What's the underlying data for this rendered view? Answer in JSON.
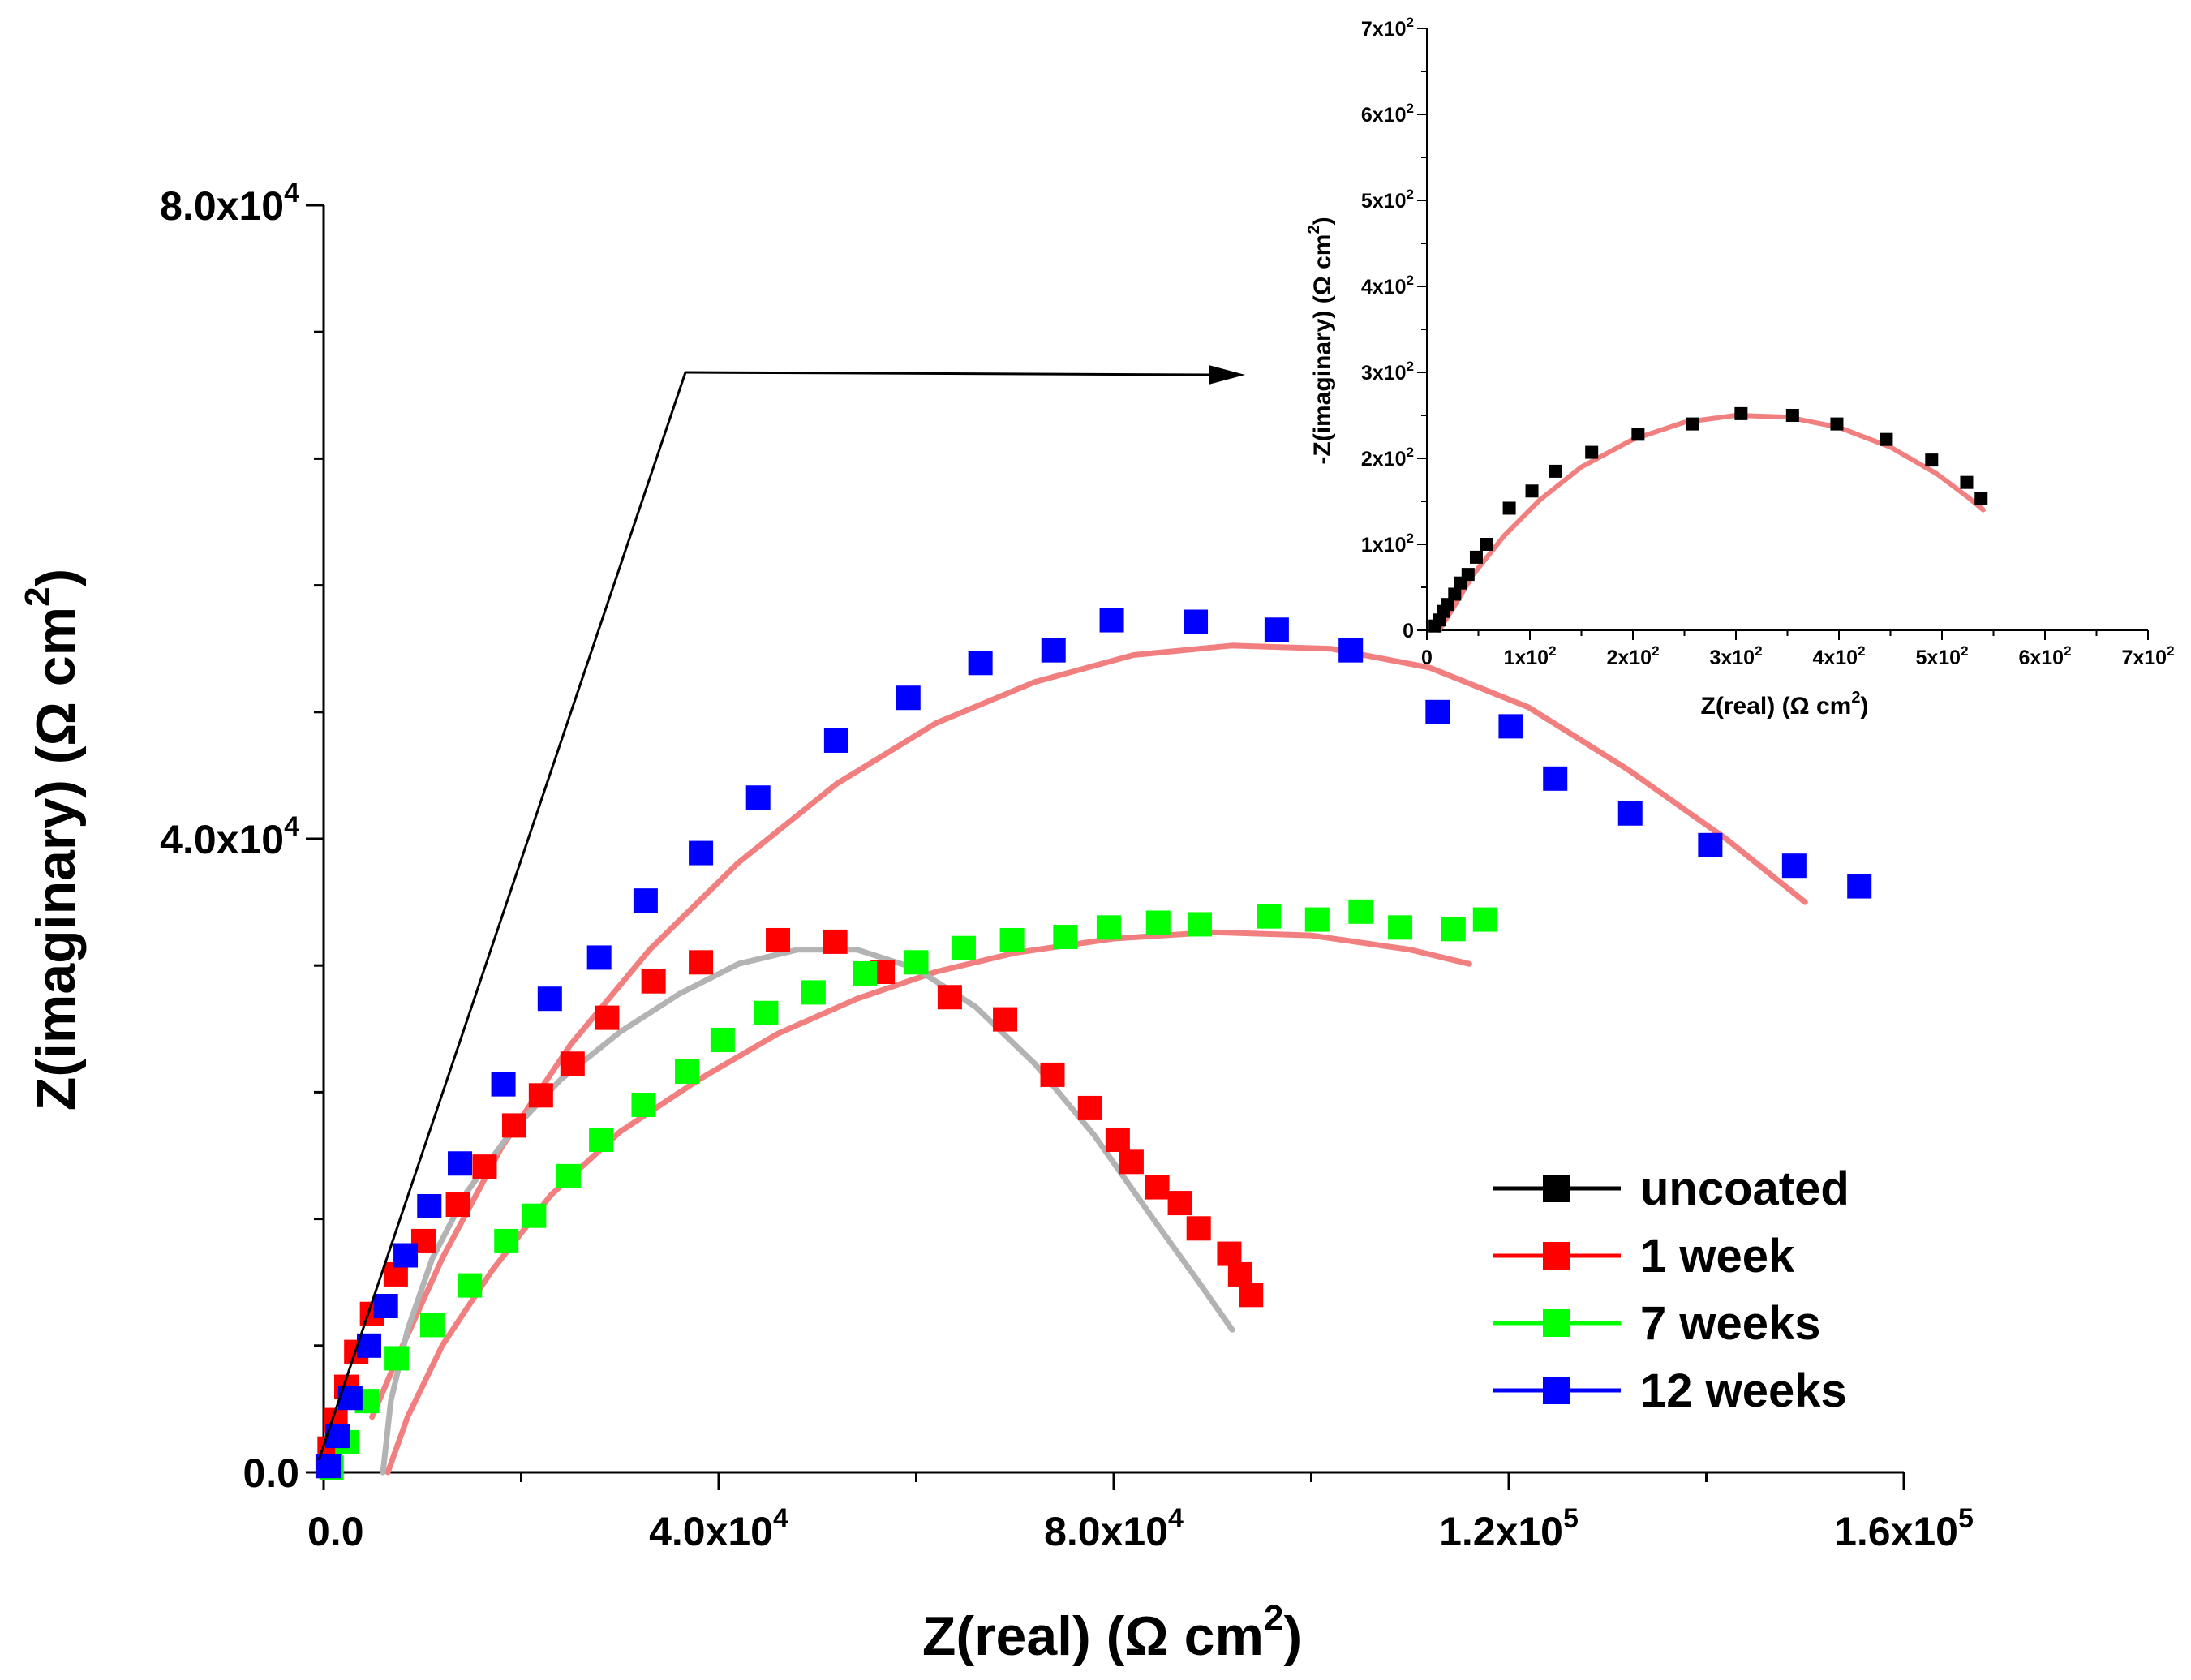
{
  "chart_data": [
    {
      "type": "scatter",
      "role": "main",
      "xlabel": "Z(real) (Ω cm²)",
      "ylabel": "Z(imaginary) (Ω cm²)",
      "xlim": [
        0,
        200000
      ],
      "ylim": [
        0,
        80000
      ],
      "x_ticks": [
        {
          "value": 0,
          "label": "0.0"
        },
        {
          "value": 40000,
          "label": "4.0x10",
          "exp": "4"
        },
        {
          "value": 80000,
          "label": "8.0x10",
          "exp": "4"
        },
        {
          "value": 120000,
          "label": "1.2x10",
          "exp": "5"
        },
        {
          "value": 160000,
          "label": "1.6x10",
          "exp": "5"
        }
      ],
      "y_ticks": [
        {
          "value": 0,
          "label": "0.0"
        },
        {
          "value": 40000,
          "label": "4.0x10",
          "exp": "4"
        },
        {
          "value": 80000,
          "label": "8.0x10",
          "exp": "4"
        }
      ],
      "legend_position": "bottom-right",
      "series": [
        {
          "name": "uncoated",
          "color": "#000000",
          "points": []
        },
        {
          "name": "1 week",
          "color": "#ff0000",
          "points": [
            [
              400,
              400
            ],
            [
              600,
              1500
            ],
            [
              1200,
              3300
            ],
            [
              2300,
              5400
            ],
            [
              3300,
              7600
            ],
            [
              4900,
              10000
            ],
            [
              7300,
              12500
            ],
            [
              10100,
              14600
            ],
            [
              13600,
              16900
            ],
            [
              16300,
              19300
            ],
            [
              19300,
              21900
            ],
            [
              22000,
              23800
            ],
            [
              25200,
              25800
            ],
            [
              28700,
              28700
            ],
            [
              33400,
              31000
            ],
            [
              38200,
              32200
            ],
            [
              46000,
              33600
            ],
            [
              51800,
              33500
            ],
            [
              56600,
              31600
            ],
            [
              63400,
              30000
            ],
            [
              69000,
              28600
            ],
            [
              73800,
              25100
            ],
            [
              77600,
              23000
            ],
            [
              80400,
              21000
            ],
            [
              81800,
              19600
            ],
            [
              84400,
              18000
            ],
            [
              86700,
              17000
            ],
            [
              88600,
              15400
            ],
            [
              91700,
              13800
            ],
            [
              92800,
              12500
            ],
            [
              93900,
              11200
            ]
          ]
        },
        {
          "name": "7 weeks",
          "color": "#00ff00",
          "points": [
            [
              800,
              300
            ],
            [
              2400,
              1900
            ],
            [
              4400,
              4500
            ],
            [
              7400,
              7200
            ],
            [
              11000,
              9300
            ],
            [
              14800,
              11800
            ],
            [
              18500,
              14600
            ],
            [
              21300,
              16200
            ],
            [
              24800,
              18700
            ],
            [
              28100,
              21000
            ],
            [
              32400,
              23200
            ],
            [
              36800,
              25300
            ],
            [
              40400,
              27300
            ],
            [
              44800,
              29000
            ],
            [
              49600,
              30300
            ],
            [
              54800,
              31500
            ],
            [
              60000,
              32200
            ],
            [
              64800,
              33100
            ],
            [
              69700,
              33600
            ],
            [
              75100,
              33800
            ],
            [
              79500,
              34400
            ],
            [
              84500,
              34700
            ],
            [
              88700,
              34600
            ],
            [
              95700,
              35100
            ],
            [
              100600,
              34900
            ],
            [
              105000,
              35400
            ],
            [
              109000,
              34400
            ],
            [
              114400,
              34300
            ],
            [
              117600,
              34900
            ]
          ]
        },
        {
          "name": "12 weeks",
          "color": "#0000ff",
          "points": [
            [
              500,
              400
            ],
            [
              1400,
              2300
            ],
            [
              2700,
              4700
            ],
            [
              4600,
              8000
            ],
            [
              6300,
              10500
            ],
            [
              8300,
              13700
            ],
            [
              10700,
              16800
            ],
            [
              13800,
              19500
            ],
            [
              18200,
              24500
            ],
            [
              22900,
              29900
            ],
            [
              27900,
              32500
            ],
            [
              32600,
              36100
            ],
            [
              38200,
              39100
            ],
            [
              44000,
              42600
            ],
            [
              51900,
              46200
            ],
            [
              59200,
              48900
            ],
            [
              66500,
              51100
            ],
            [
              73900,
              51900
            ],
            [
              79800,
              53800
            ],
            [
              88300,
              53700
            ],
            [
              96500,
              53200
            ],
            [
              104000,
              51900
            ],
            [
              112800,
              48000
            ],
            [
              120200,
              47100
            ],
            [
              124700,
              43800
            ],
            [
              132300,
              41600
            ],
            [
              140400,
              39600
            ],
            [
              148900,
              38300
            ],
            [
              155500,
              37000
            ]
          ]
        }
      ],
      "fit_curves": [
        {
          "color": "#f27f7f",
          "points": [
            [
              4900,
              3500
            ],
            [
              8000,
              8000
            ],
            [
              12000,
              13500
            ],
            [
              18000,
              20500
            ],
            [
              25000,
              27000
            ],
            [
              33000,
              33000
            ],
            [
              42000,
              38500
            ],
            [
              52000,
              43500
            ],
            [
              62000,
              47300
            ],
            [
              72000,
              49900
            ],
            [
              82000,
              51600
            ],
            [
              92000,
              52200
            ],
            [
              102000,
              52000
            ],
            [
              112000,
              50800
            ],
            [
              122000,
              48300
            ],
            [
              132000,
              44400
            ],
            [
              142000,
              40000
            ],
            [
              150000,
              36000
            ]
          ]
        },
        {
          "color": "#f27f7f",
          "points": [
            [
              6500,
              0
            ],
            [
              8500,
              3500
            ],
            [
              12000,
              8000
            ],
            [
              17000,
              12700
            ],
            [
              23000,
              17500
            ],
            [
              30000,
              21500
            ],
            [
              38000,
              24800
            ],
            [
              46000,
              27700
            ],
            [
              54000,
              29900
            ],
            [
              62000,
              31600
            ],
            [
              70000,
              32800
            ],
            [
              80000,
              33700
            ],
            [
              90000,
              34100
            ],
            [
              100000,
              33900
            ],
            [
              110000,
              33000
            ],
            [
              116000,
              32100
            ]
          ]
        },
        {
          "color": "#b3b3b3",
          "points": [
            [
              6000,
              0
            ],
            [
              6800,
              4500
            ],
            [
              8500,
              9000
            ],
            [
              11000,
              13500
            ],
            [
              14500,
              17700
            ],
            [
              19000,
              21500
            ],
            [
              24000,
              24800
            ],
            [
              30000,
              27800
            ],
            [
              36000,
              30200
            ],
            [
              42000,
              32100
            ],
            [
              48000,
              33000
            ],
            [
              54000,
              33000
            ],
            [
              60000,
              31800
            ],
            [
              66000,
              29400
            ],
            [
              72000,
              25800
            ],
            [
              78000,
              21300
            ],
            [
              84000,
              16000
            ],
            [
              88500,
              12100
            ],
            [
              92000,
              9000
            ]
          ]
        }
      ]
    },
    {
      "type": "scatter",
      "role": "inset",
      "xlabel": "Z(real) (Ω cm²)",
      "ylabel": "-Z(imaginary) (Ω cm²)",
      "xlim": [
        0,
        700
      ],
      "ylim": [
        0,
        700
      ],
      "x_ticks": [
        {
          "value": 0,
          "label": "0"
        },
        {
          "value": 100,
          "label": "1x10",
          "exp": "2"
        },
        {
          "value": 200,
          "label": "2x10",
          "exp": "2"
        },
        {
          "value": 300,
          "label": "3x10",
          "exp": "2"
        },
        {
          "value": 400,
          "label": "4x10",
          "exp": "2"
        },
        {
          "value": 500,
          "label": "5x10",
          "exp": "2"
        },
        {
          "value": 600,
          "label": "6x10",
          "exp": "2"
        },
        {
          "value": 700,
          "label": "7x10",
          "exp": "2"
        }
      ],
      "y_ticks": [
        {
          "value": 0,
          "label": "0"
        },
        {
          "value": 100,
          "label": "1x10",
          "exp": "2"
        },
        {
          "value": 200,
          "label": "2x10",
          "exp": "2"
        },
        {
          "value": 300,
          "label": "3x10",
          "exp": "2"
        },
        {
          "value": 400,
          "label": "4x10",
          "exp": "2"
        },
        {
          "value": 500,
          "label": "5x10",
          "exp": "2"
        },
        {
          "value": 600,
          "label": "6x10",
          "exp": "2"
        },
        {
          "value": 700,
          "label": "7x10",
          "exp": "2"
        }
      ],
      "series": [
        {
          "name": "uncoated",
          "color": "#000000",
          "points": [
            [
              8,
              5
            ],
            [
              12,
              12
            ],
            [
              16,
              22
            ],
            [
              20,
              30
            ],
            [
              27,
              42
            ],
            [
              33,
              55
            ],
            [
              40,
              65
            ],
            [
              48,
              85
            ],
            [
              58,
              100
            ],
            [
              80,
              142
            ],
            [
              102,
              162
            ],
            [
              125,
              185
            ],
            [
              160,
              207
            ],
            [
              205,
              228
            ],
            [
              258,
              240
            ],
            [
              305,
              252
            ],
            [
              355,
              250
            ],
            [
              398,
              240
            ],
            [
              446,
              222
            ],
            [
              490,
              198
            ],
            [
              524,
              172
            ],
            [
              538,
              153
            ]
          ]
        }
      ],
      "fit_curves": [
        {
          "color": "#f27f7f",
          "points": [
            [
              12,
              0
            ],
            [
              25,
              25
            ],
            [
              45,
              65
            ],
            [
              75,
              110
            ],
            [
              110,
              152
            ],
            [
              150,
              190
            ],
            [
              200,
              222
            ],
            [
              250,
              242
            ],
            [
              300,
              250
            ],
            [
              350,
              248
            ],
            [
              400,
              236
            ],
            [
              450,
              213
            ],
            [
              495,
              182
            ],
            [
              525,
              155
            ],
            [
              540,
              140
            ]
          ]
        }
      ]
    }
  ]
}
